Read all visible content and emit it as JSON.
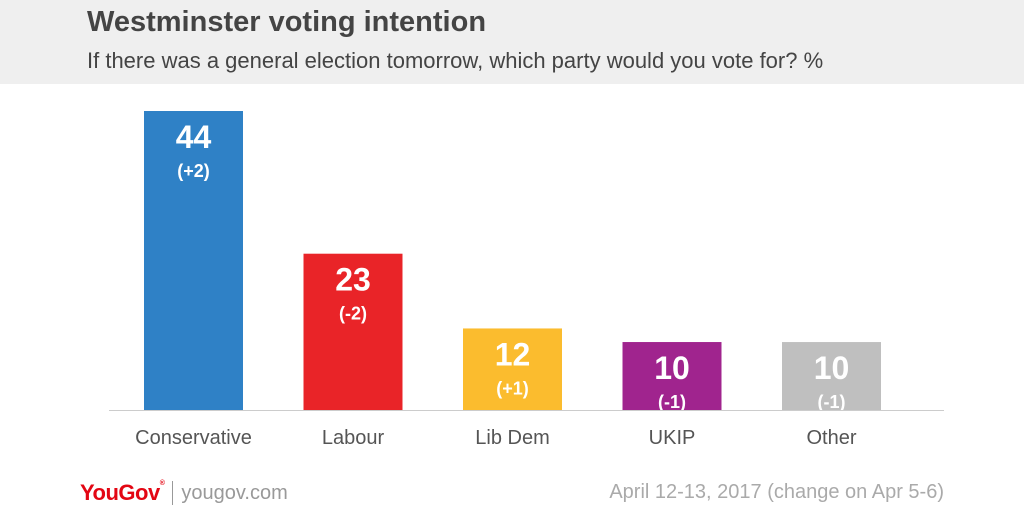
{
  "header": {
    "title": "Westminster voting intention",
    "subtitle": "If there was a general election tomorrow, which party would you vote for? %"
  },
  "footer": {
    "logo": "YouGov",
    "site": "yougov.com",
    "note": "April 12-13, 2017 (change on Apr 5-6)"
  },
  "colors": {
    "header_bg": "#efefef",
    "Conservative": "#2f81c6",
    "Labour": "#e92428",
    "Lib Dem": "#fbbc2e",
    "UKIP": "#a0248e",
    "Other": "#bfbfbf"
  },
  "chart_data": {
    "type": "bar",
    "categories": [
      "Conservative",
      "Labour",
      "Lib Dem",
      "UKIP",
      "Other"
    ],
    "values": [
      44,
      23,
      12,
      10,
      10
    ],
    "changes": [
      "(+2)",
      "(-2)",
      "(+1)",
      "(-1)",
      "(-1)"
    ],
    "colors": [
      "#2f81c6",
      "#e92428",
      "#fbbc2e",
      "#a0248e",
      "#bfbfbf"
    ],
    "ylim": [
      0,
      44
    ],
    "grid": false,
    "legend": "none"
  }
}
